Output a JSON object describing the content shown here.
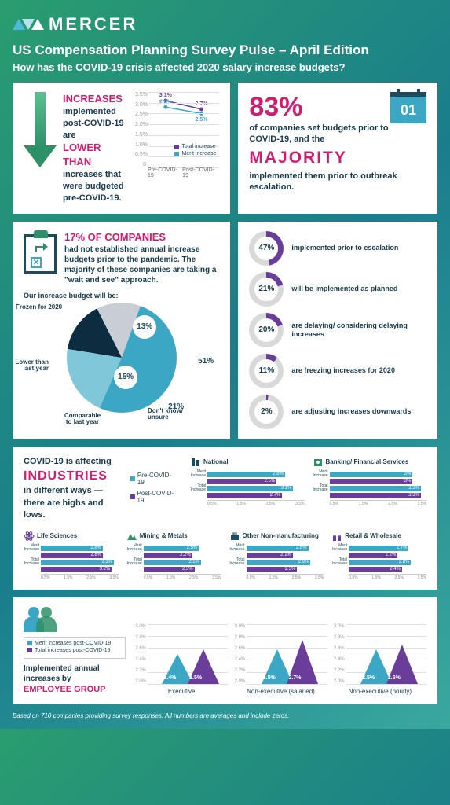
{
  "brand": "MERCER",
  "title": "US Compensation Planning Survey Pulse – April Edition",
  "subtitle": "How has the COVID-19 crisis affected 2020 salary increase budgets?",
  "colors": {
    "pink": "#d51a6f",
    "navy": "#173a4f",
    "teal": "#1a8ca8",
    "blue": "#3ba7c4",
    "purple": "#6a3d9a",
    "green": "#2e9067",
    "ltblue": "#7fc7d9",
    "dkblue": "#0d2c40",
    "grey": "#c8ced3"
  },
  "increases": {
    "heading": "INCREASES",
    "text1": "implemented post-COVID-19 are",
    "lower": "LOWER THAN",
    "text2": "increases that were budgeted pre-COVID-19.",
    "chart": {
      "ylabels": [
        "3.5%",
        "3.0%",
        "2.5%",
        "2.0%",
        "1.5%",
        "1.0%",
        "0.5%",
        "0"
      ],
      "xlabels": [
        "Pre-COVID-19",
        "Post-COVID-19"
      ],
      "total": {
        "pre": 3.1,
        "post": 2.7,
        "color": "#6a3d9a",
        "label": "Total increase"
      },
      "merit": {
        "pre": 2.8,
        "post": 2.5,
        "color": "#3ba7c4",
        "label": "Merit increase"
      }
    }
  },
  "stat83": {
    "pct": "83%",
    "cal": "01",
    "l1": "of companies set budgets prior to COVID-19, and the",
    "majority": "MAJORITY",
    "l2": "implemented them prior to outbreak escalation."
  },
  "stat17": {
    "pct": "17% OF COMPANIES",
    "text": "had not established annual increase budgets prior to the pandemic. The majority of these companies are taking a \"wait and see\" approach.",
    "pietitle": "Our increase budget will be:",
    "pie": [
      {
        "label": "Don't know/\nunsure",
        "value": 51,
        "color": "#3ba7c4"
      },
      {
        "label": "Comparable\nto last year",
        "value": 21,
        "color": "#7fc7d9"
      },
      {
        "label": "Lower than\nlast year",
        "value": 15,
        "color": "#0d2c40"
      },
      {
        "label": "Frozen for 2020",
        "value": 13,
        "color": "#c8ced3"
      }
    ]
  },
  "donuts": [
    {
      "pct": 47,
      "text": "implemented prior to escalation"
    },
    {
      "pct": 21,
      "text": "will be implemented as planned"
    },
    {
      "pct": 20,
      "text": "are delaying/ considering delaying increases"
    },
    {
      "pct": 11,
      "text": "are freezing increases for 2020"
    },
    {
      "pct": 2,
      "text": "are adjusting increases downwards"
    }
  ],
  "donut_colors": {
    "fill": "#6a3d9a",
    "track": "#d9d9d9"
  },
  "industries": {
    "l1": "COVID-19 is affecting",
    "big": "INDUSTRIES",
    "l2": "in different ways — there are highs and lows.",
    "legend": {
      "pre": "Pre-COVID-19",
      "post": "Post-COVID-19"
    },
    "xticks": [
      "0.5%",
      "1.5%",
      "2.5%",
      "3.5%"
    ],
    "items": [
      {
        "name": "National",
        "merit_pre": 2.8,
        "merit_post": 2.5,
        "total_pre": 3.1,
        "total_post": 2.7,
        "icon": "building"
      },
      {
        "name": "Banking/ Financial Services",
        "merit_pre": 3.0,
        "merit_post": 3.0,
        "total_pre": 3.3,
        "total_post": 3.3,
        "icon": "safe"
      },
      {
        "name": "Life Sciences",
        "merit_pre": 2.8,
        "merit_post": 2.8,
        "total_pre": 3.3,
        "total_post": 3.2,
        "icon": "atom"
      },
      {
        "name": "Mining & Metals",
        "merit_pre": 2.5,
        "merit_post": 2.2,
        "total_pre": 2.6,
        "total_post": 2.3,
        "icon": "mountain"
      },
      {
        "name": "Other Non-manufacturing",
        "merit_pre": 2.8,
        "merit_post": 2.1,
        "total_pre": 2.9,
        "total_post": 2.3,
        "icon": "briefcase"
      },
      {
        "name": "Retail & Wholesale",
        "merit_pre": 2.7,
        "merit_post": 2.2,
        "total_pre": 2.8,
        "total_post": 2.4,
        "icon": "gift"
      }
    ],
    "bar_colors": {
      "pre": "#3ba7c4",
      "post": "#6a3d9a"
    },
    "row_labels": {
      "merit": "Merit\nIncrease",
      "total": "Total\nIncrease"
    }
  },
  "employee": {
    "l1": "Implemented annual increases by",
    "big": "EMPLOYEE GROUP",
    "legend": {
      "merit": "Merit increases post-COVID-19",
      "total": "Total increases post-COVID-19"
    },
    "ylabels": [
      "3.0%",
      "2.8%",
      "2.6%",
      "2.4%",
      "2.2%",
      "2.0%"
    ],
    "groups": [
      {
        "name": "Executive",
        "merit": 2.4,
        "total": 2.5
      },
      {
        "name": "Non-executive (salaried)",
        "merit": 2.5,
        "total": 2.7
      },
      {
        "name": "Non-executive (hourly)",
        "merit": 2.5,
        "total": 2.6
      }
    ],
    "colors": {
      "merit": "#3ba7c4",
      "total": "#6a3d9a"
    }
  },
  "footnote": "Based on 710 companies providing survey responses. All numbers are averages and include zeros."
}
